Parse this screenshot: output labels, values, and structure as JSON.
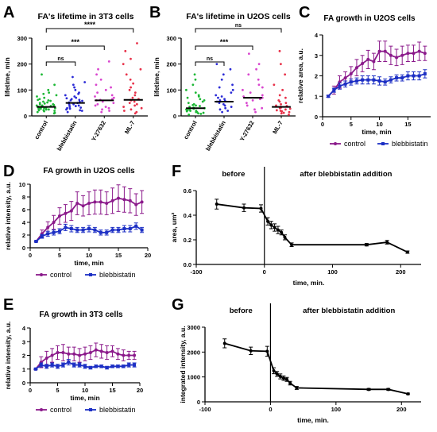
{
  "figure": {
    "panel_letters": [
      "A",
      "B",
      "C",
      "D",
      "E",
      "F",
      "G"
    ]
  },
  "colors": {
    "control_green": "#1db836",
    "blebbistatin_blue": "#2b2bd6",
    "y27632_magenta": "#d946cf",
    "ml7_red": "#e8324a",
    "control_line": "#8b1a8b",
    "blebbistatin_line": "#1c2fc4",
    "black": "#000000"
  },
  "chart_data": [
    {
      "panel": "A",
      "type": "scatter",
      "title": "FA's lifetime in 3T3 cells",
      "ylabel": "lifetime, min",
      "ylim": [
        0,
        300
      ],
      "yticks": [
        "0",
        "100",
        "200",
        "300"
      ],
      "categories": [
        "control",
        "blebbistatin",
        "Y-27632",
        "ML-7"
      ],
      "medians": [
        35,
        50,
        60,
        62
      ],
      "points": [
        [
          10,
          12,
          15,
          18,
          20,
          22,
          22,
          25,
          25,
          28,
          28,
          30,
          30,
          32,
          32,
          35,
          35,
          38,
          38,
          40,
          40,
          42,
          45,
          45,
          48,
          50,
          52,
          55,
          58,
          60,
          62,
          65,
          70,
          75,
          80,
          85,
          90,
          100,
          120,
          160
        ],
        [
          15,
          20,
          22,
          25,
          28,
          30,
          32,
          35,
          38,
          40,
          42,
          45,
          48,
          50,
          52,
          55,
          58,
          60,
          62,
          65,
          68,
          70,
          75,
          80,
          85,
          90,
          100,
          110,
          120,
          130,
          150
        ],
        [
          15,
          20,
          25,
          30,
          35,
          40,
          45,
          50,
          55,
          60,
          62,
          65,
          70,
          75,
          80,
          90,
          100,
          110,
          120,
          140,
          160,
          180,
          210
        ],
        [
          10,
          15,
          20,
          25,
          30,
          35,
          40,
          45,
          50,
          55,
          60,
          62,
          65,
          70,
          80,
          90,
          100,
          110,
          125,
          140,
          160,
          180,
          200,
          220,
          250,
          280
        ]
      ],
      "colors": [
        "#1db836",
        "#2b2bd6",
        "#d946cf",
        "#e8324a"
      ],
      "comparisons": [
        {
          "from": 0,
          "to": 1,
          "label": "ns"
        },
        {
          "from": 0,
          "to": 2,
          "label": "***"
        },
        {
          "from": 0,
          "to": 3,
          "label": "****"
        }
      ]
    },
    {
      "panel": "B",
      "type": "scatter",
      "title": "FA's lifetime in U2OS cells",
      "ylabel": "lifetime, min",
      "ylim": [
        0,
        300
      ],
      "yticks": [
        "0",
        "100",
        "200",
        "300"
      ],
      "categories": [
        "control",
        "blebbistatin",
        "Y-27632",
        "ML-7"
      ],
      "medians": [
        30,
        55,
        70,
        35
      ],
      "points": [
        [
          5,
          8,
          10,
          12,
          15,
          15,
          18,
          20,
          20,
          22,
          25,
          25,
          28,
          30,
          30,
          32,
          35,
          38,
          40,
          42,
          45,
          50,
          55,
          60,
          65,
          70,
          75,
          80,
          90,
          100,
          120,
          140,
          160
        ],
        [
          15,
          20,
          25,
          30,
          35,
          40,
          45,
          50,
          55,
          58,
          60,
          65,
          70,
          75,
          80,
          90,
          100,
          110,
          120,
          140,
          160,
          180,
          200
        ],
        [
          15,
          25,
          30,
          40,
          50,
          60,
          65,
          70,
          75,
          80,
          90,
          100,
          110,
          120,
          140,
          160,
          180,
          200,
          240
        ],
        [
          5,
          10,
          12,
          15,
          18,
          20,
          22,
          25,
          28,
          30,
          32,
          35,
          38,
          40,
          45,
          50,
          55,
          60,
          70,
          80,
          100,
          120,
          160,
          200,
          250
        ]
      ],
      "colors": [
        "#1db836",
        "#2b2bd6",
        "#d946cf",
        "#e8324a"
      ],
      "comparisons": [
        {
          "from": 0,
          "to": 1,
          "label": "ns"
        },
        {
          "from": 0,
          "to": 2,
          "label": "***"
        },
        {
          "from": 0,
          "to": 3,
          "label": "ns"
        }
      ]
    },
    {
      "panel": "C",
      "type": "line",
      "title": "FA growth in U2OS cells",
      "ylabel": "relative area, a.u.",
      "xlabel": "time, min",
      "xlim": [
        0,
        19
      ],
      "ylim": [
        0,
        4
      ],
      "xticks": [
        0,
        5,
        10,
        15
      ],
      "yticks": [
        0,
        1,
        2,
        3,
        4
      ],
      "legend": "bottom",
      "series": [
        {
          "name": "control",
          "color": "#8b1a8b",
          "marker": "circle",
          "x": [
            1,
            2,
            3,
            4,
            5,
            6,
            7,
            8,
            9,
            10,
            11,
            12,
            13,
            14,
            15,
            16,
            17,
            18
          ],
          "y": [
            1.0,
            1.3,
            1.7,
            1.9,
            2.1,
            2.4,
            2.6,
            2.8,
            2.7,
            3.2,
            3.2,
            3.0,
            2.9,
            3.0,
            3.1,
            3.1,
            3.2,
            3.1
          ],
          "err": [
            0.05,
            0.2,
            0.3,
            0.3,
            0.35,
            0.4,
            0.4,
            0.45,
            0.4,
            0.5,
            0.5,
            0.45,
            0.4,
            0.45,
            0.4,
            0.4,
            0.45,
            0.35
          ]
        },
        {
          "name": "blebbistatin",
          "color": "#1c2fc4",
          "marker": "square",
          "x": [
            1,
            2,
            3,
            4,
            5,
            6,
            7,
            8,
            9,
            10,
            11,
            12,
            13,
            14,
            15,
            16,
            17,
            18
          ],
          "y": [
            1.0,
            1.3,
            1.5,
            1.6,
            1.7,
            1.75,
            1.8,
            1.8,
            1.8,
            1.75,
            1.7,
            1.8,
            1.9,
            1.9,
            2.0,
            2.0,
            2.0,
            2.1
          ],
          "err": [
            0.05,
            0.1,
            0.15,
            0.15,
            0.15,
            0.15,
            0.2,
            0.2,
            0.2,
            0.2,
            0.15,
            0.15,
            0.15,
            0.15,
            0.2,
            0.2,
            0.2,
            0.2
          ]
        }
      ]
    },
    {
      "panel": "D",
      "type": "line",
      "title": "FA growth in U2OS cells",
      "ylabel": "relative intensity, a.u.",
      "xlabel": "time, min",
      "xlim": [
        0,
        20
      ],
      "ylim": [
        0,
        10
      ],
      "xticks": [
        0,
        5,
        10,
        15,
        20
      ],
      "yticks": [
        0,
        2,
        4,
        6,
        8,
        10
      ],
      "legend": "bottom",
      "series": [
        {
          "name": "control",
          "color": "#8b1a8b",
          "marker": "circle",
          "x": [
            1,
            2,
            3,
            4,
            5,
            6,
            7,
            8,
            9,
            10,
            11,
            12,
            13,
            14,
            15,
            16,
            17,
            18,
            19
          ],
          "y": [
            1.0,
            2.2,
            3.2,
            4.0,
            5.0,
            5.4,
            5.8,
            7.0,
            6.6,
            7.0,
            7.2,
            7.2,
            7.0,
            7.4,
            7.8,
            7.6,
            7.4,
            6.8,
            7.2
          ],
          "err": [
            0.1,
            0.6,
            0.9,
            1.1,
            1.3,
            1.4,
            1.5,
            1.8,
            1.6,
            1.8,
            1.9,
            1.9,
            1.8,
            2.0,
            2.1,
            2.0,
            1.9,
            1.7,
            1.8
          ]
        },
        {
          "name": "blebbistatin",
          "color": "#1c2fc4",
          "marker": "square",
          "x": [
            1,
            2,
            3,
            4,
            5,
            6,
            7,
            8,
            9,
            10,
            11,
            12,
            13,
            14,
            15,
            16,
            17,
            18,
            19
          ],
          "y": [
            1.0,
            1.8,
            2.2,
            2.4,
            2.6,
            3.2,
            3.0,
            2.8,
            2.8,
            3.0,
            2.8,
            2.4,
            2.4,
            2.8,
            2.8,
            3.0,
            3.0,
            3.4,
            2.8
          ],
          "err": [
            0.1,
            0.3,
            0.4,
            0.4,
            0.4,
            0.5,
            0.5,
            0.4,
            0.4,
            0.5,
            0.4,
            0.4,
            0.4,
            0.4,
            0.4,
            0.5,
            0.5,
            0.5,
            0.4
          ]
        }
      ]
    },
    {
      "panel": "E",
      "type": "line",
      "title": "FA growth in 3T3 cells",
      "ylabel": "relative intensity, a.u.",
      "xlabel": "time, min",
      "xlim": [
        0,
        20
      ],
      "ylim": [
        0,
        4
      ],
      "xticks": [
        0,
        5,
        10,
        15,
        20
      ],
      "yticks": [
        0,
        1,
        2,
        3,
        4
      ],
      "legend": "bottom",
      "series": [
        {
          "name": "control",
          "color": "#8b1a8b",
          "marker": "circle",
          "x": [
            1,
            2,
            3,
            4,
            5,
            6,
            7,
            8,
            9,
            10,
            11,
            12,
            13,
            14,
            15,
            16,
            17,
            18,
            19
          ],
          "y": [
            1.0,
            1.5,
            1.8,
            2.0,
            2.2,
            2.2,
            2.1,
            2.1,
            2.0,
            2.1,
            2.2,
            2.4,
            2.3,
            2.2,
            2.3,
            2.1,
            2.0,
            2.0,
            2.0
          ],
          "err": [
            0.05,
            0.4,
            0.5,
            0.5,
            0.5,
            0.6,
            0.5,
            0.5,
            0.5,
            0.5,
            0.5,
            0.5,
            0.5,
            0.5,
            0.4,
            0.4,
            0.4,
            0.3,
            0.3
          ]
        },
        {
          "name": "blebbistatin",
          "color": "#1c2fc4",
          "marker": "square",
          "x": [
            1,
            2,
            3,
            4,
            5,
            6,
            7,
            8,
            9,
            10,
            11,
            12,
            13,
            14,
            15,
            16,
            17,
            18,
            19
          ],
          "y": [
            1.0,
            1.3,
            1.2,
            1.3,
            1.2,
            1.3,
            1.5,
            1.3,
            1.3,
            1.2,
            1.1,
            1.2,
            1.2,
            1.1,
            1.2,
            1.2,
            1.2,
            1.3,
            1.3
          ],
          "err": [
            0.05,
            0.15,
            0.15,
            0.15,
            0.15,
            0.15,
            0.2,
            0.15,
            0.15,
            0.15,
            0.1,
            0.1,
            0.1,
            0.1,
            0.1,
            0.1,
            0.1,
            0.15,
            0.15
          ]
        }
      ]
    },
    {
      "panel": "F",
      "type": "line",
      "ylabel": "area, um²",
      "xlabel": "time, min.",
      "xlim": [
        -100,
        230
      ],
      "ylim": [
        0,
        0.6
      ],
      "xticks": [
        -100,
        0,
        100,
        200
      ],
      "yticks": [
        "0.0",
        "0.2",
        "0.4",
        "0.6"
      ],
      "annotations": [
        "before",
        "after blebbistatin addition"
      ],
      "series": [
        {
          "color": "#000000",
          "x": [
            -70,
            -30,
            -5,
            5,
            10,
            15,
            20,
            25,
            30,
            40,
            150,
            180,
            210
          ],
          "y": [
            0.49,
            0.46,
            0.455,
            0.35,
            0.32,
            0.3,
            0.28,
            0.26,
            0.22,
            0.16,
            0.16,
            0.18,
            0.1
          ],
          "err": [
            0.04,
            0.03,
            0.03,
            0.03,
            0.03,
            0.03,
            0.03,
            0.02,
            0.02,
            0.015,
            0.01,
            0.015,
            0.01
          ]
        }
      ]
    },
    {
      "panel": "G",
      "type": "line",
      "ylabel": "integrated intensity, a.u.",
      "xlabel": "time, min.",
      "xlim": [
        -100,
        230
      ],
      "ylim": [
        0,
        3000
      ],
      "xticks": [
        -100,
        0,
        100,
        200
      ],
      "yticks": [
        "0",
        "1000",
        "2000",
        "3000"
      ],
      "annotations": [
        "before",
        "after blebbistatin addition"
      ],
      "series": [
        {
          "color": "#000000",
          "x": [
            -70,
            -30,
            -5,
            5,
            10,
            15,
            20,
            25,
            30,
            40,
            150,
            180,
            210
          ],
          "y": [
            2350,
            2050,
            2030,
            1250,
            1120,
            1020,
            950,
            900,
            750,
            560,
            500,
            500,
            320
          ],
          "err": [
            180,
            150,
            200,
            120,
            100,
            100,
            90,
            80,
            70,
            60,
            40,
            40,
            30
          ]
        }
      ]
    }
  ]
}
